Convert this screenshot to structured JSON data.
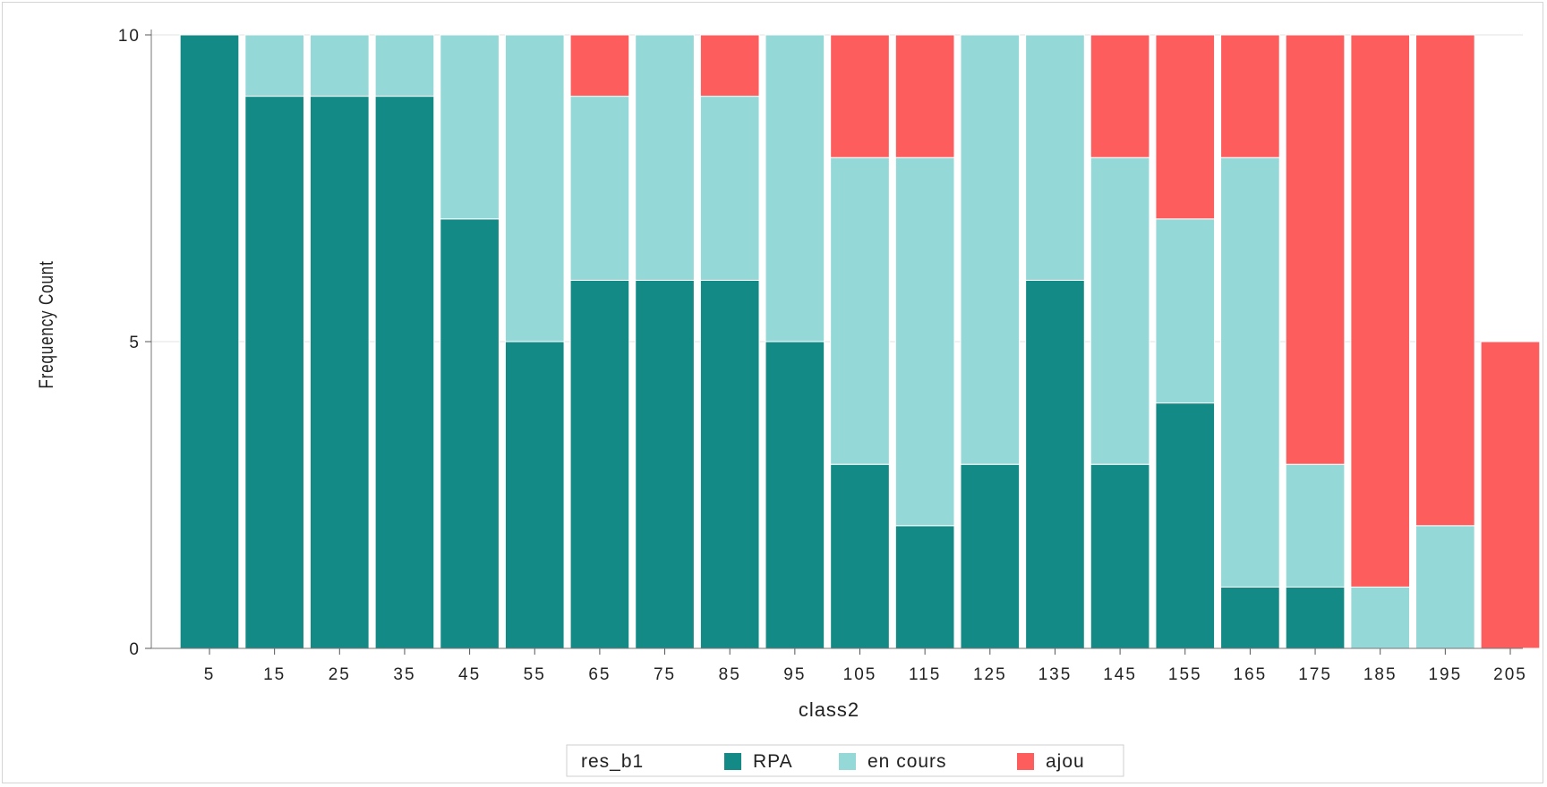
{
  "chart_data": {
    "type": "bar",
    "stacked": true,
    "categories": [
      "5",
      "15",
      "25",
      "35",
      "45",
      "55",
      "65",
      "75",
      "85",
      "95",
      "105",
      "115",
      "125",
      "135",
      "145",
      "155",
      "165",
      "175",
      "185",
      "195",
      "205"
    ],
    "series": [
      {
        "name": "RPA",
        "color": "#148a87",
        "values": [
          10,
          9,
          9,
          9,
          7,
          5,
          6,
          6,
          6,
          5,
          3,
          2,
          3,
          6,
          3,
          4,
          1,
          1,
          0,
          0,
          0
        ]
      },
      {
        "name": "en cours",
        "color": "#94d8d8",
        "values": [
          0,
          1,
          1,
          1,
          3,
          5,
          3,
          4,
          3,
          5,
          5,
          6,
          7,
          4,
          5,
          3,
          7,
          2,
          1,
          2,
          0
        ]
      },
      {
        "name": "ajou",
        "color": "#fe5d5d",
        "values": [
          0,
          0,
          0,
          0,
          0,
          0,
          1,
          0,
          1,
          0,
          2,
          2,
          0,
          0,
          2,
          3,
          2,
          7,
          9,
          8,
          5
        ]
      }
    ],
    "xlabel": "class2",
    "ylabel": "Frequency Count",
    "ylim": [
      0,
      10
    ],
    "yticks": [
      0,
      5,
      10
    ],
    "grid": true,
    "legend": {
      "title": "res_b1",
      "position": "bottom-center"
    }
  }
}
